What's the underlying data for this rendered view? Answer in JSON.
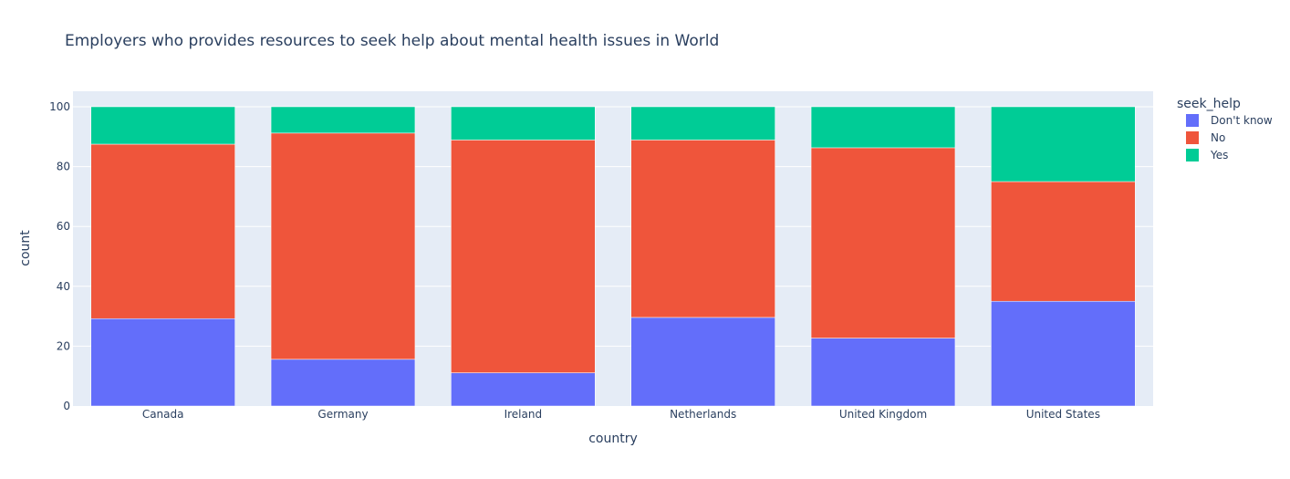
{
  "chart_data": {
    "type": "bar",
    "barmode": "stack",
    "title": "Employers who provides resources to seek help about mental health issues in World",
    "xlabel": "country",
    "ylabel": "count",
    "ylim": [
      0,
      100
    ],
    "yticks": [
      0,
      20,
      40,
      60,
      80,
      100
    ],
    "grid": true,
    "legend_title": "seek_help",
    "legend_position": "top-right",
    "categories": [
      "Canada",
      "Germany",
      "Ireland",
      "Netherlands",
      "United Kingdom",
      "United States"
    ],
    "series": [
      {
        "name": "Don't know",
        "color": "#636efa",
        "values": [
          29.2,
          15.6,
          11.1,
          29.6,
          22.7,
          35
        ]
      },
      {
        "name": "No",
        "color": "#ef553b",
        "values": [
          58.3,
          75.6,
          77.8,
          59.3,
          63.6,
          40
        ]
      },
      {
        "name": "Yes",
        "color": "#00cc96",
        "values": [
          12.5,
          8.8,
          11.1,
          11.1,
          13.7,
          25
        ]
      }
    ]
  }
}
